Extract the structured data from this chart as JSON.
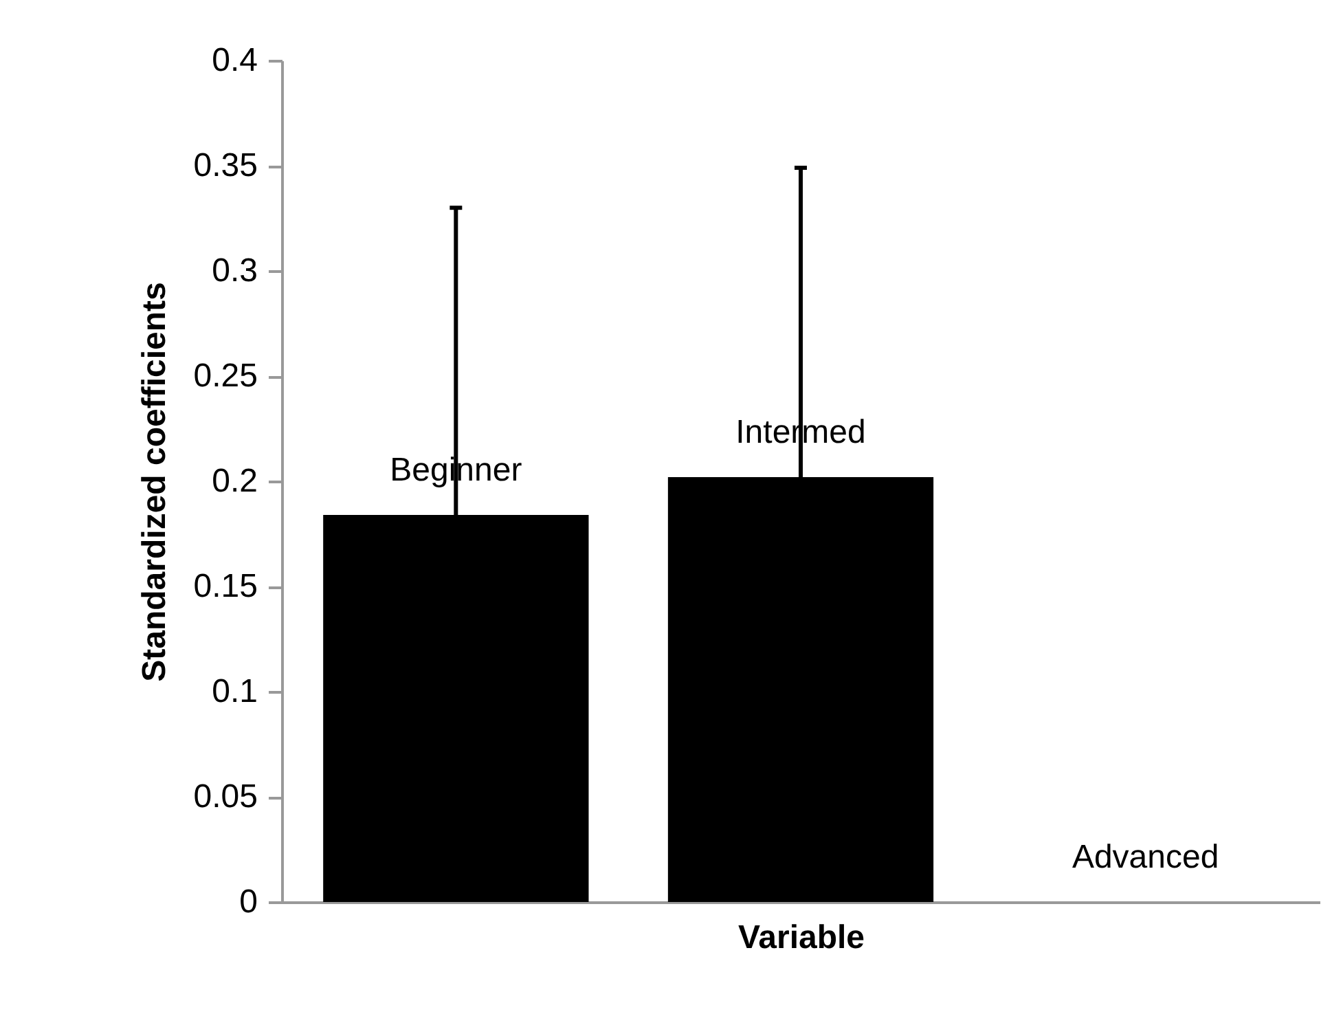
{
  "chart_data": {
    "type": "bar",
    "xlabel": "Variable",
    "ylabel": "Standardized coefficients",
    "categories": [
      "Beginner",
      "Intermed",
      "Advanced"
    ],
    "values": [
      0.184,
      0.202,
      0
    ],
    "errors": [
      [
        0.184,
        0.33
      ],
      [
        0.202,
        0.349
      ],
      null
    ],
    "color": "#000000",
    "ylim": [
      0,
      0.4
    ],
    "yticks": [
      0,
      0.05,
      0.1,
      0.15,
      0.2,
      0.25,
      0.3,
      0.35,
      0.4
    ],
    "tick_labels": "y",
    "grid": false
  }
}
